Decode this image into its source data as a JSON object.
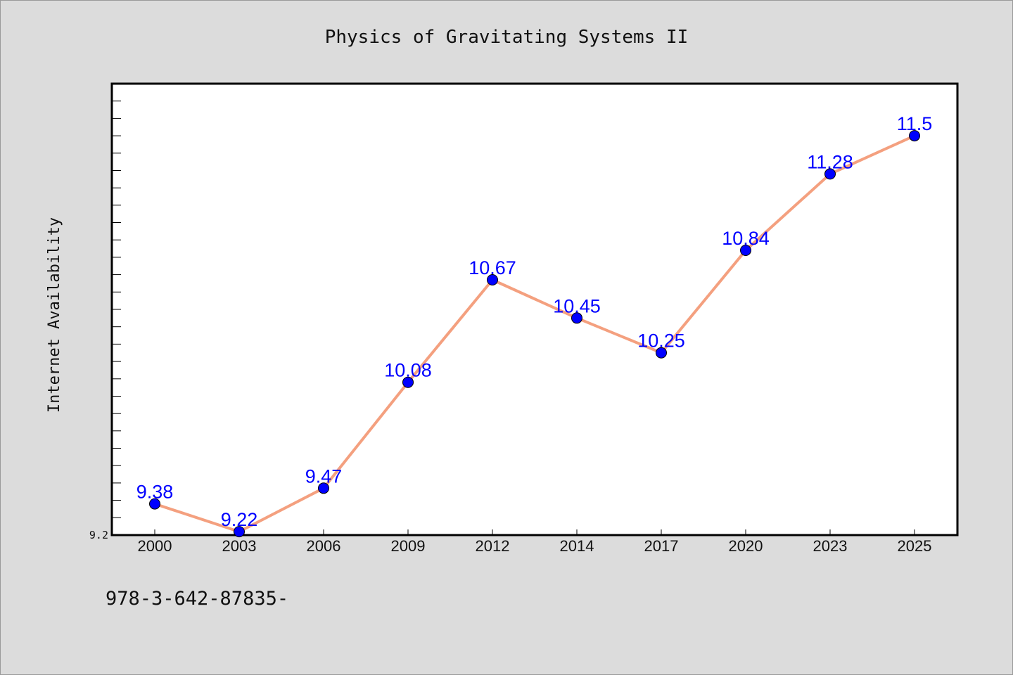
{
  "chart_data": {
    "type": "line",
    "title": "Physics of Gravitating Systems II",
    "xlabel": "",
    "ylabel": "Internet Availability",
    "categories": [
      "2000",
      "2003",
      "2006",
      "2009",
      "2012",
      "2014",
      "2017",
      "2020",
      "2023",
      "2025"
    ],
    "series": [
      {
        "values": [
          9.38,
          9.22,
          9.47,
          10.08,
          10.67,
          10.45,
          10.25,
          10.84,
          11.28,
          11.5
        ]
      }
    ],
    "data_labels": [
      "9.38",
      "9.22",
      "9.47",
      "10.08",
      "10.67",
      "10.45",
      "10.25",
      "10.84",
      "11.28",
      "11.5"
    ],
    "ylim": [
      9.2,
      11.8
    ],
    "yticks_labeled": [
      "9.2"
    ],
    "grid": false,
    "legend": "none",
    "colors": {
      "line": "#f4a07f",
      "marker": "#0000ff",
      "data_label": "#0000ff",
      "background": "#dcdcdc",
      "plot_area": "#ffffff"
    }
  },
  "footer": {
    "text": "978-3-642-87835-"
  }
}
